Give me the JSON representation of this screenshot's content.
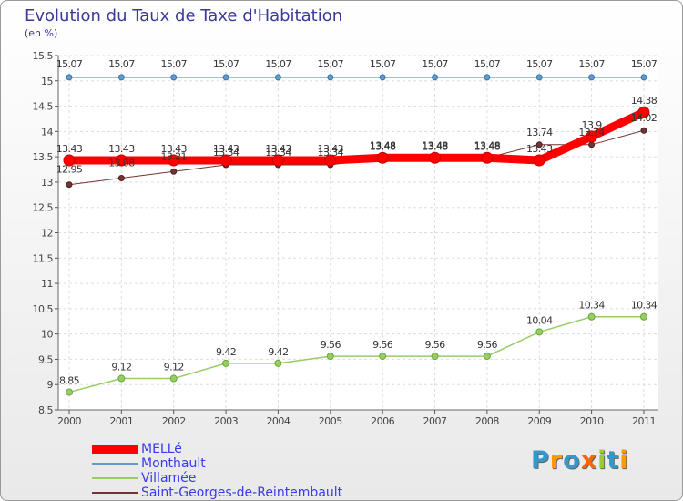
{
  "chart_data": {
    "type": "line",
    "title": "Evolution du Taux de Taxe d'Habitation",
    "ylabel": "(en %)",
    "xlabel": "",
    "ylim": [
      8.5,
      15.5
    ],
    "yticks": [
      "8.5",
      "9",
      "9.5",
      "10",
      "10.5",
      "11",
      "11.5",
      "12",
      "12.5",
      "13",
      "13.5",
      "14",
      "14.5",
      "15",
      "15.5"
    ],
    "x": [
      "2000",
      "2001",
      "2002",
      "2003",
      "2004",
      "2005",
      "2006",
      "2007",
      "2008",
      "2009",
      "2010",
      "2011"
    ],
    "grid": true,
    "series": [
      {
        "name": "MELLé",
        "color": "#ff0000",
        "values": [
          13.43,
          13.43,
          13.43,
          13.43,
          13.43,
          13.43,
          13.48,
          13.48,
          13.48,
          13.43,
          13.9,
          14.38
        ],
        "labels": [
          "13.43",
          "13.43",
          "13.43",
          "13.43",
          "13.43",
          "13.43",
          "13.48",
          "13.48",
          "13.48",
          "13.43",
          "13.9",
          "14.38"
        ]
      },
      {
        "name": "Monthault",
        "color": "#6699cc",
        "values": [
          15.07,
          15.07,
          15.07,
          15.07,
          15.07,
          15.07,
          15.07,
          15.07,
          15.07,
          15.07,
          15.07,
          15.07
        ],
        "labels": [
          "15.07",
          "15.07",
          "15.07",
          "15.07",
          "15.07",
          "15.07",
          "15.07",
          "15.07",
          "15.07",
          "15.07",
          "15.07",
          "15.07"
        ]
      },
      {
        "name": "Villamée",
        "color": "#99cc66",
        "values": [
          8.85,
          9.12,
          9.12,
          9.42,
          9.42,
          9.56,
          9.56,
          9.56,
          9.56,
          10.04,
          10.34,
          10.34
        ],
        "labels": [
          "8.85",
          "9.12",
          "9.12",
          "9.42",
          "9.42",
          "9.56",
          "9.56",
          "9.56",
          "9.56",
          "10.04",
          "10.34",
          "10.34"
        ]
      },
      {
        "name": "Saint-Georges-de-Reintembault",
        "color": "#773333",
        "values": [
          12.95,
          13.08,
          13.21,
          13.34,
          13.34,
          13.34,
          13.48,
          13.48,
          13.48,
          13.74,
          13.74,
          14.02
        ],
        "labels": [
          "12.95",
          "13.08",
          "13.21",
          "13.34",
          "13.34",
          "13.34",
          "13.48",
          "13.48",
          "13.48",
          "13.74",
          "13.74",
          "14.02"
        ]
      }
    ]
  },
  "logo": {
    "text": "Proxiti",
    "letters": [
      "P",
      "r",
      "o",
      "x",
      "i",
      "t",
      "i"
    ],
    "colors": [
      "#3399cc",
      "#ff9900",
      "#3399cc",
      "#ff6600",
      "#99cc33",
      "#3399cc",
      "#ff9900"
    ]
  }
}
